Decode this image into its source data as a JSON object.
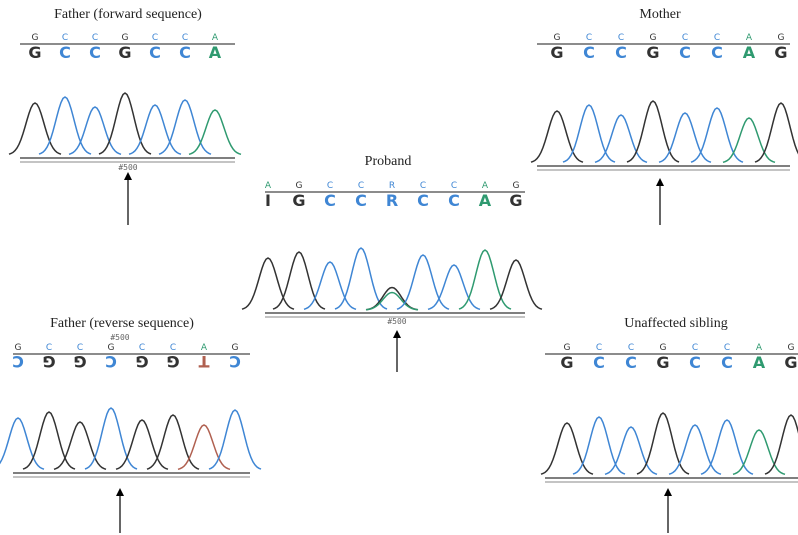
{
  "base_colors": {
    "G": "#333333",
    "C": "#3f86d4",
    "A": "#2f9a70",
    "T": "#b06050",
    "R": "#3f86d4",
    "I": "#333333"
  },
  "panels": [
    {
      "title": "Father (forward sequence)",
      "small": [
        "G",
        "C",
        "C",
        "G",
        "C",
        "C",
        "A"
      ],
      "big": [
        "G",
        "C",
        "C",
        "G",
        "C",
        "C",
        "A"
      ],
      "note": "#500"
    },
    {
      "title": "Mother",
      "small": [
        "G",
        "C",
        "C",
        "G",
        "C",
        "C",
        "A",
        "G"
      ],
      "big": [
        "G",
        "C",
        "C",
        "G",
        "C",
        "C",
        "A",
        "G"
      ]
    },
    {
      "title": "Proband",
      "small": [
        "A",
        "G",
        "C",
        "C",
        "R",
        "C",
        "C",
        "A",
        "G"
      ],
      "big": [
        "I",
        "G",
        "C",
        "C",
        "R",
        "C",
        "C",
        "A",
        "G"
      ],
      "note": "#500"
    },
    {
      "title": "Father (reverse sequence)",
      "small": [
        "G",
        "C",
        "C",
        "G",
        "C",
        "C",
        "A",
        "G"
      ],
      "big": [
        "C",
        "G",
        "G",
        "C",
        "G",
        "G",
        "T",
        "C"
      ],
      "note": "#500"
    },
    {
      "title": "Unaffected sibling",
      "small": [
        "G",
        "C",
        "C",
        "G",
        "C",
        "C",
        "A",
        "G"
      ],
      "big": [
        "G",
        "C",
        "C",
        "G",
        "C",
        "C",
        "A",
        "G"
      ]
    }
  ]
}
